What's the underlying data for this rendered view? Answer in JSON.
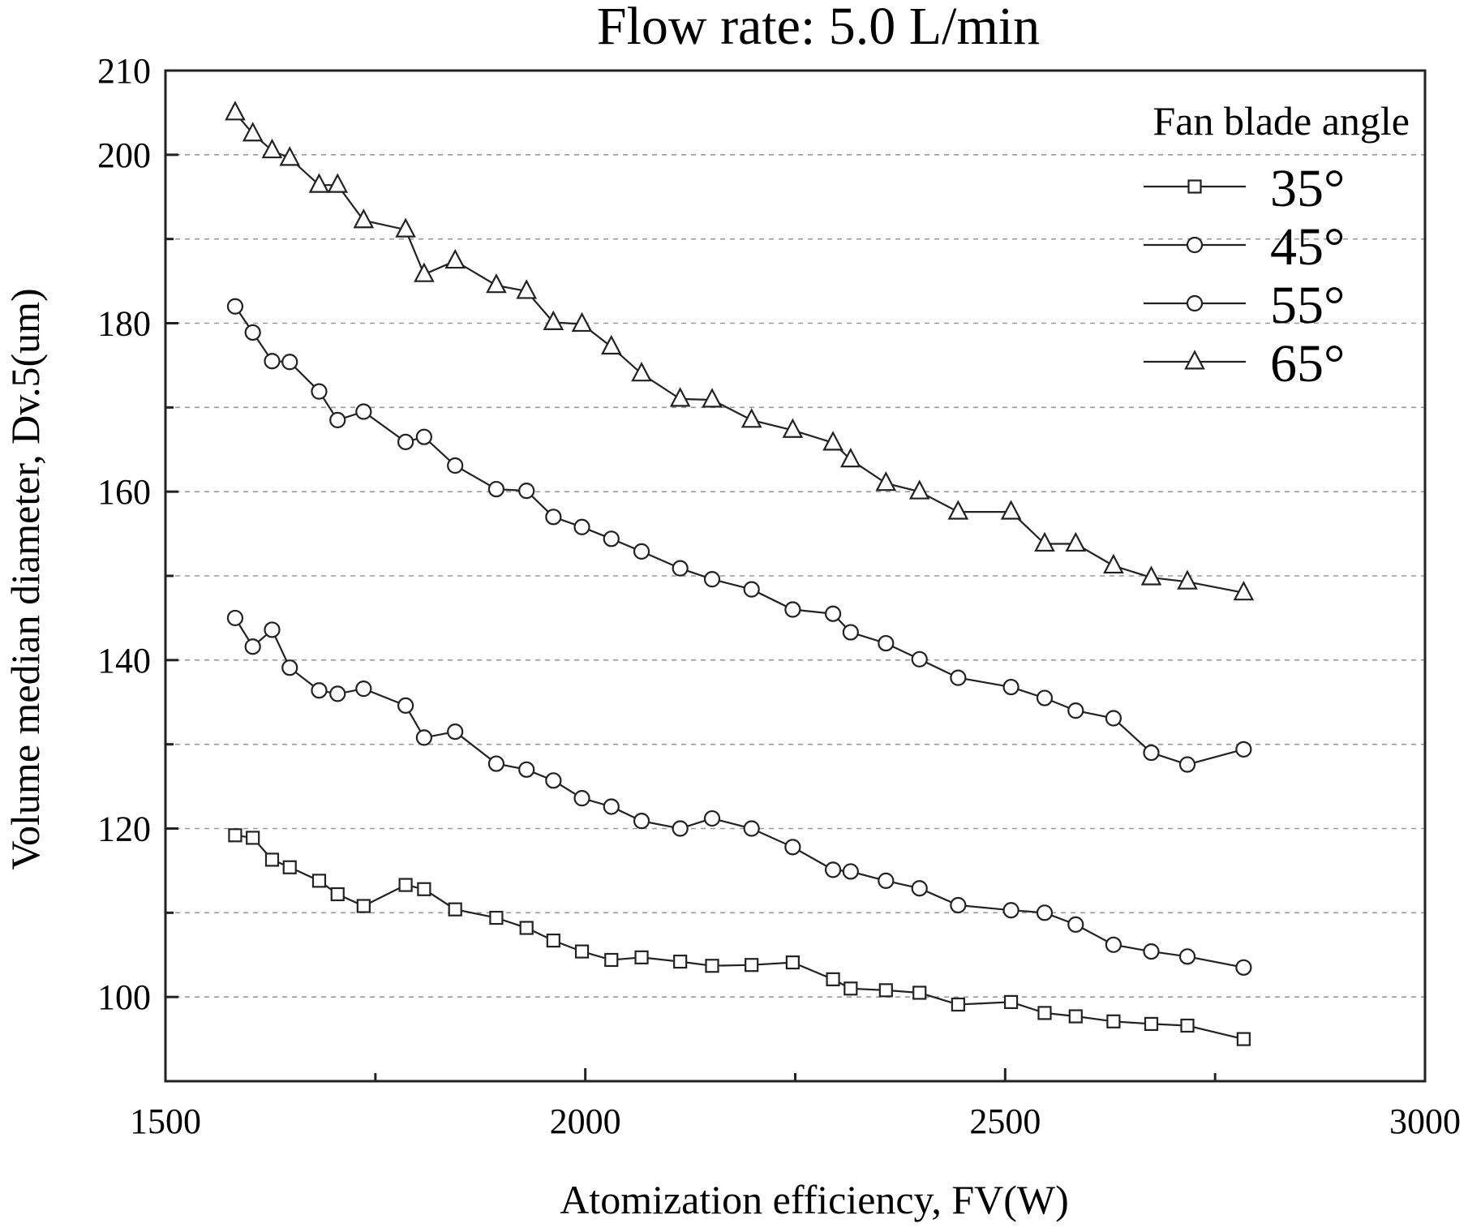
{
  "chart_data": {
    "type": "line",
    "title": "Flow rate: 5.0 L/min",
    "xlabel": "Atomization efficiency, FV(W)",
    "ylabel": "Volume median diameter, Dv.5(um)",
    "xlim": [
      1500,
      3000
    ],
    "ylim": [
      90,
      210
    ],
    "xticks": [
      1500,
      2000,
      2500,
      3000
    ],
    "yticks": [
      100,
      120,
      140,
      160,
      180,
      200,
      210
    ],
    "grid": true,
    "legend_title": "Fan blade angle",
    "legend_position": "top-right",
    "series": [
      {
        "name": "35°",
        "marker": "square",
        "points": [
          [
            1583,
            119.2
          ],
          [
            1604,
            118.9
          ],
          [
            1627,
            116.3
          ],
          [
            1648,
            115.4
          ],
          [
            1683,
            113.8
          ],
          [
            1705,
            112.2
          ],
          [
            1736,
            110.8
          ],
          [
            1786,
            113.3
          ],
          [
            1808,
            112.8
          ],
          [
            1845,
            110.4
          ],
          [
            1894,
            109.4
          ],
          [
            1930,
            108.2
          ],
          [
            1962,
            106.7
          ],
          [
            1996,
            105.4
          ],
          [
            2031,
            104.4
          ],
          [
            2067,
            104.7
          ],
          [
            2113,
            104.2
          ],
          [
            2151,
            103.7
          ],
          [
            2198,
            103.8
          ],
          [
            2247,
            104.1
          ],
          [
            2295,
            102.1
          ],
          [
            2316,
            101.0
          ],
          [
            2358,
            100.8
          ],
          [
            2398,
            100.5
          ],
          [
            2444,
            99.1
          ],
          [
            2507,
            99.4
          ],
          [
            2547,
            98.1
          ],
          [
            2584,
            97.7
          ],
          [
            2629,
            97.1
          ],
          [
            2674,
            96.8
          ],
          [
            2717,
            96.6
          ],
          [
            2784,
            95.0
          ]
        ]
      },
      {
        "name": "45°",
        "marker": "circle",
        "points": [
          [
            1583,
            182.0
          ],
          [
            1604,
            178.9
          ],
          [
            1627,
            175.5
          ],
          [
            1648,
            175.4
          ],
          [
            1683,
            171.9
          ],
          [
            1705,
            168.5
          ],
          [
            1736,
            169.5
          ],
          [
            1786,
            165.9
          ],
          [
            1808,
            166.5
          ],
          [
            1845,
            163.1
          ],
          [
            1894,
            160.3
          ],
          [
            1930,
            160.1
          ],
          [
            1962,
            157.0
          ],
          [
            1996,
            155.8
          ],
          [
            2031,
            154.4
          ],
          [
            2067,
            152.9
          ],
          [
            2113,
            150.9
          ],
          [
            2151,
            149.6
          ],
          [
            2198,
            148.4
          ],
          [
            2247,
            146.0
          ],
          [
            2295,
            145.5
          ],
          [
            2316,
            143.3
          ],
          [
            2358,
            142.0
          ],
          [
            2398,
            140.1
          ],
          [
            2444,
            137.9
          ],
          [
            2507,
            136.8
          ],
          [
            2547,
            135.5
          ],
          [
            2584,
            134.0
          ],
          [
            2629,
            133.1
          ],
          [
            2674,
            129.0
          ],
          [
            2717,
            127.6
          ],
          [
            2784,
            129.4
          ]
        ]
      },
      {
        "name": "55°",
        "marker": "circle",
        "points": [
          [
            1583,
            145.0
          ],
          [
            1604,
            141.6
          ],
          [
            1627,
            143.6
          ],
          [
            1648,
            139.1
          ],
          [
            1683,
            136.4
          ],
          [
            1705,
            136.0
          ],
          [
            1736,
            136.6
          ],
          [
            1786,
            134.6
          ],
          [
            1808,
            130.8
          ],
          [
            1845,
            131.5
          ],
          [
            1894,
            127.7
          ],
          [
            1930,
            127.0
          ],
          [
            1962,
            125.7
          ],
          [
            1996,
            123.6
          ],
          [
            2031,
            122.6
          ],
          [
            2067,
            120.9
          ],
          [
            2113,
            120.0
          ],
          [
            2151,
            121.2
          ],
          [
            2198,
            120.0
          ],
          [
            2247,
            117.8
          ],
          [
            2295,
            115.1
          ],
          [
            2316,
            114.9
          ],
          [
            2358,
            113.8
          ],
          [
            2398,
            112.9
          ],
          [
            2444,
            110.9
          ],
          [
            2507,
            110.3
          ],
          [
            2547,
            110.0
          ],
          [
            2584,
            108.6
          ],
          [
            2629,
            106.2
          ],
          [
            2674,
            105.4
          ],
          [
            2717,
            104.8
          ],
          [
            2784,
            103.5
          ]
        ]
      },
      {
        "name": "65°",
        "marker": "triangle",
        "points": [
          [
            1583,
            205.0
          ],
          [
            1604,
            202.5
          ],
          [
            1627,
            200.5
          ],
          [
            1648,
            199.6
          ],
          [
            1683,
            196.4
          ],
          [
            1705,
            196.4
          ],
          [
            1736,
            192.2
          ],
          [
            1786,
            191.1
          ],
          [
            1808,
            185.8
          ],
          [
            1845,
            187.4
          ],
          [
            1894,
            184.5
          ],
          [
            1930,
            183.8
          ],
          [
            1962,
            180.1
          ],
          [
            1996,
            179.9
          ],
          [
            2031,
            177.2
          ],
          [
            2067,
            174.0
          ],
          [
            2113,
            171.0
          ],
          [
            2151,
            170.9
          ],
          [
            2198,
            168.5
          ],
          [
            2247,
            167.3
          ],
          [
            2295,
            165.8
          ],
          [
            2316,
            163.8
          ],
          [
            2358,
            161.0
          ],
          [
            2398,
            160.0
          ],
          [
            2444,
            157.6
          ],
          [
            2507,
            157.6
          ],
          [
            2547,
            153.8
          ],
          [
            2584,
            153.8
          ],
          [
            2629,
            151.2
          ],
          [
            2674,
            149.8
          ],
          [
            2717,
            149.3
          ],
          [
            2784,
            148.0
          ]
        ]
      }
    ]
  }
}
